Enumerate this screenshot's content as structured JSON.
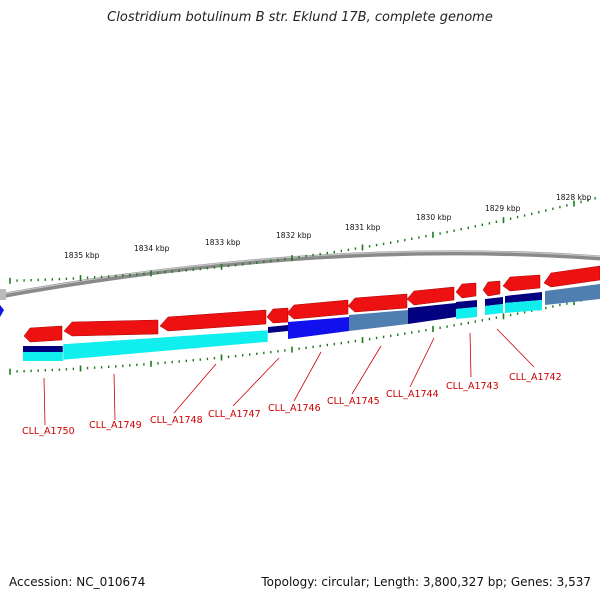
{
  "title": "Clostridium botulinum B str. Eklund 17B, complete genome",
  "footer": {
    "accession": "Accession: NC_010674",
    "summary": "Topology: circular; Length: 3,800,327 bp; Genes: 3,537"
  },
  "ruler_labels": [
    "1835 kbp",
    "1834 kbp",
    "1833 kbp",
    "1832 kbp",
    "1831 kbp",
    "1830 kbp",
    "1829 kbp",
    "1828 kbp"
  ],
  "gene_labels": [
    "CLL_A1750",
    "CLL_A1749",
    "CLL_A1748",
    "CLL_A1747",
    "CLL_A1746",
    "CLL_A1745",
    "CLL_A1744",
    "CLL_A1743",
    "CLL_A1742"
  ],
  "colors": {
    "feature_red": "#ee1111",
    "blue": "#1111ee",
    "navy": "#000080",
    "cyan": "#11eeee",
    "steel": "#4f7fb0",
    "tick_green": "#1a7a1a",
    "backbone": "#888888",
    "label_red": "#cc0000"
  }
}
